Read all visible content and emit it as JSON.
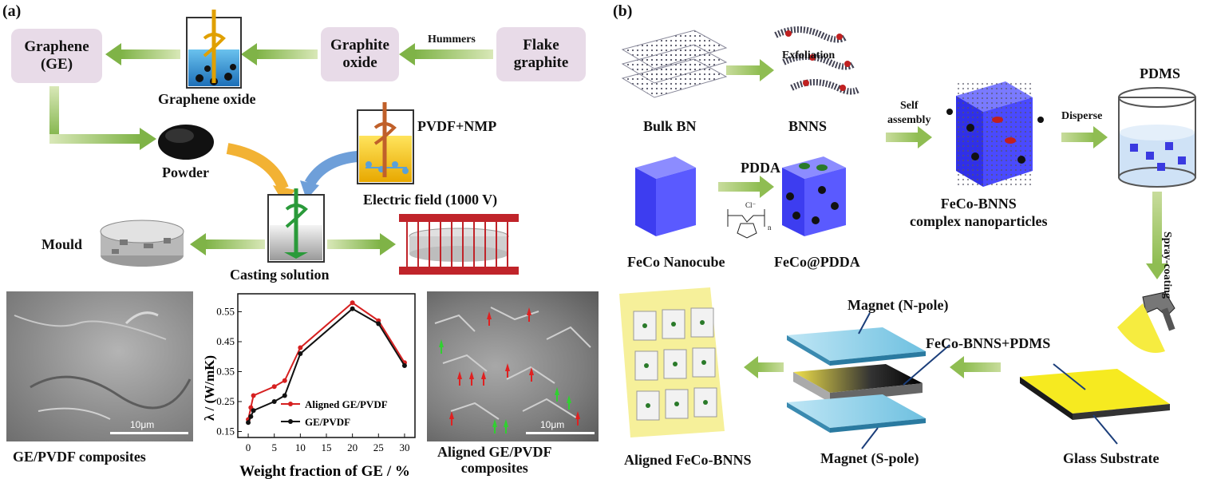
{
  "panel_a": {
    "tag": "(a)",
    "box_graphene": "Graphene\n(GE)",
    "box_graphite_oxide": "Graphite\noxide",
    "box_flake": "Flake\ngraphite",
    "hummers": "Hummers",
    "graphene_oxide": "Graphene oxide",
    "powder": "Powder",
    "pvdf_nmp": "PVDF+NMP",
    "electric_field": "Electric field (1000 V)",
    "mould": "Mould",
    "casting": "Casting solution",
    "sem_left_caption": "GE/PVDF composites",
    "sem_right_caption": "Aligned GE/PVDF\ncomposites",
    "scale_left": "10μm",
    "scale_right": "10μm"
  },
  "panel_b": {
    "tag": "(b)",
    "exfoliation": "Exfoliation",
    "bulk_bn": "Bulk BN",
    "bnns": "BNNS",
    "self_assembly": "Self\nassembly",
    "disperse": "Disperse",
    "pdms": "PDMS",
    "pdda": "PDDA",
    "feco_nanocube": "FeCo Nanocube",
    "feco_pdda": "FeCo@PDDA",
    "feco_bnns": "FeCo-BNNS\ncomplex nanoparticles",
    "spray": "Spray-coating",
    "magnet_n": "Magnet (N-pole)",
    "magnet_s": "Magnet (S-pole)",
    "feco_pdms": "FeCo-BNNS+PDMS",
    "glass": "Glass Substrate",
    "aligned": "Aligned FeCo-BNNS",
    "chem_cl": "Cl⁻",
    "chem_n": "n"
  },
  "chart_data": {
    "type": "line",
    "xlabel": "Weight fraction of GE / %",
    "ylabel": "λ / (W/mK)",
    "xlim": [
      -2,
      32
    ],
    "ylim": [
      0.13,
      0.61
    ],
    "xticks": [
      0,
      5,
      10,
      15,
      20,
      25,
      30
    ],
    "yticks": [
      0.15,
      0.25,
      0.35,
      0.45,
      0.55
    ],
    "legend_position": "bottom-right",
    "series": [
      {
        "name": "Aligned GE/PVDF",
        "color": "#d62020",
        "x": [
          0,
          0.5,
          1,
          5,
          7,
          10,
          20,
          25,
          30
        ],
        "y": [
          0.19,
          0.23,
          0.27,
          0.3,
          0.32,
          0.43,
          0.58,
          0.52,
          0.38
        ]
      },
      {
        "name": "GE/PVDF",
        "color": "#111111",
        "x": [
          0,
          0.5,
          1,
          5,
          7,
          10,
          20,
          25,
          30
        ],
        "y": [
          0.18,
          0.2,
          0.22,
          0.25,
          0.27,
          0.41,
          0.56,
          0.51,
          0.37
        ]
      }
    ]
  }
}
